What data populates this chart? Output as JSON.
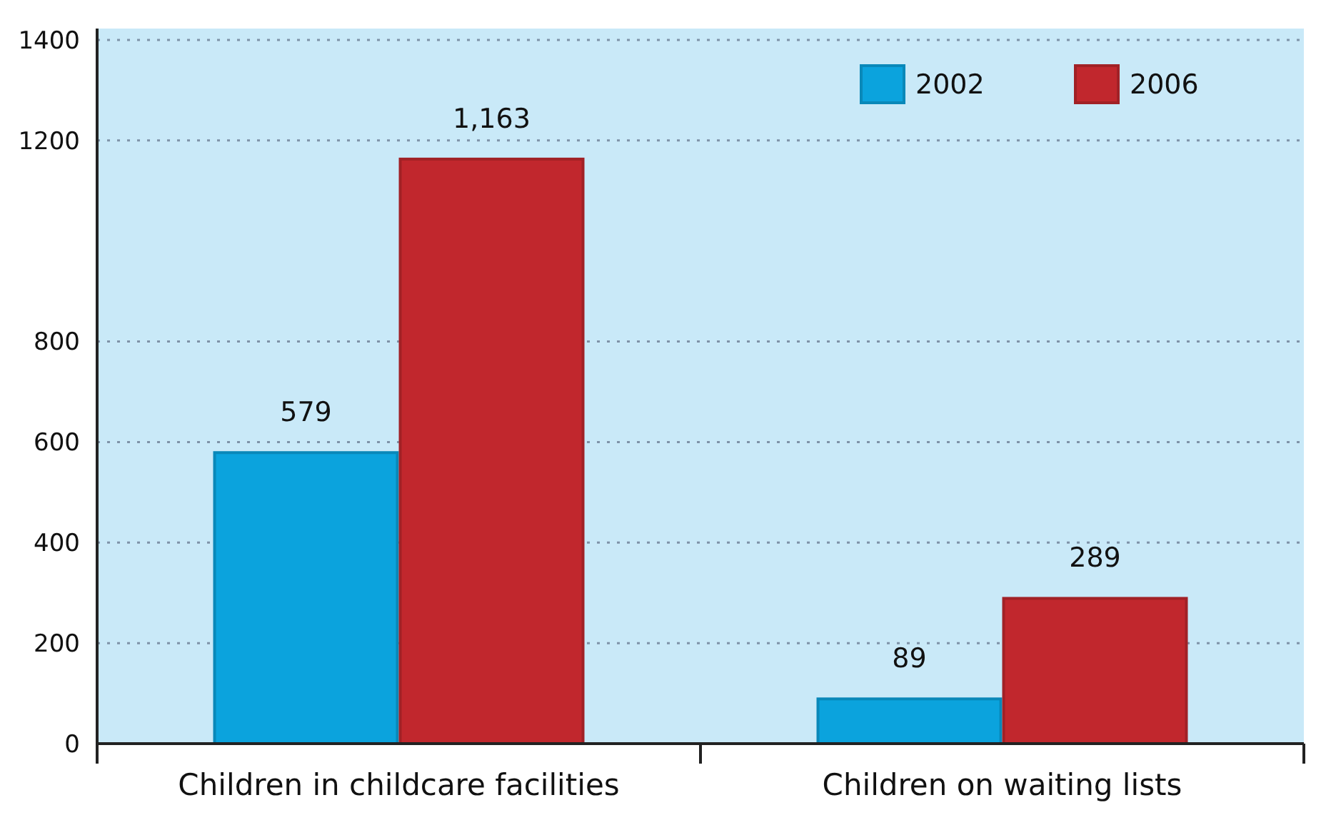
{
  "chart_data": {
    "type": "bar",
    "categories": [
      "Children in childcare facilities",
      "Children on waiting lists"
    ],
    "series": [
      {
        "name": "2002",
        "color": "#0ba3dd",
        "values": [
          579,
          89
        ],
        "value_labels": [
          "579",
          "89"
        ]
      },
      {
        "name": "2006",
        "color": "#c1272d",
        "values": [
          1163,
          289
        ],
        "value_labels": [
          "1,163",
          "289"
        ]
      }
    ],
    "ylim": [
      0,
      1400
    ],
    "yticks": [
      0,
      200,
      400,
      600,
      800,
      1200,
      1400
    ],
    "grid": "y",
    "legend": "top right"
  }
}
